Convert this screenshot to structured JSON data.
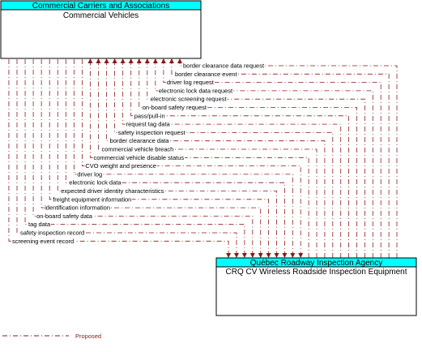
{
  "nodes": [
    {
      "header": "Commercial Carriers and Associations",
      "label": "Commercial Vehicles"
    },
    {
      "header": "Québec Roadway Inspection Agency",
      "label": "CRQ CV Wireless Roadside Inspection Equipment"
    }
  ],
  "flows": [
    "border clearance data request",
    "border clearance event",
    "driver log request",
    "electronic lock data request",
    "electronic screening request",
    "on-board safety request",
    "pass/pull-in",
    "request tag data",
    "safety inspection request",
    "border clearance data",
    "commercial vehicle breach",
    "commercial vehicle disable status",
    "CVO weight and presence",
    "driver log",
    "electronic lock data",
    "expected driver identity characteristics",
    "freight equipment information",
    "identification information",
    "on-board safety data",
    "tag data",
    "safety inspection record",
    "screening event record"
  ],
  "legend": {
    "label": "Proposed"
  }
}
